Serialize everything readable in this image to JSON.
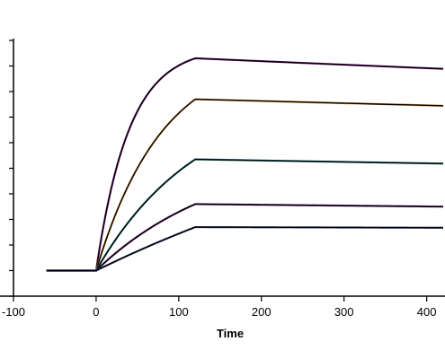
{
  "chart_data": {
    "type": "line",
    "title": "",
    "xlabel": "Time",
    "ylabel": "",
    "xlim": [
      -100,
      420
    ],
    "ylim": [
      0,
      10
    ],
    "x_ticks": [
      -100,
      0,
      100,
      200,
      300,
      400
    ],
    "x_tick_labels": [
      "-100",
      "0",
      "100",
      "200",
      "300",
      "400"
    ],
    "y_ticks": [
      0,
      1,
      2,
      3,
      4,
      5,
      6,
      7,
      8,
      9,
      10
    ],
    "grid": false,
    "legend": "none",
    "curve_model": {
      "baseline": 1.0,
      "injection_start": 0,
      "dissociation_start": 120,
      "end": 420
    },
    "series": [
      {
        "plateau": 9.3,
        "association_rate": 0.025,
        "dissociation_rate": 0.00017,
        "color": "#7a1f7a",
        "fit_color": "#000000"
      },
      {
        "plateau": 7.7,
        "association_rate": 0.0125,
        "dissociation_rate": 0.00013,
        "color": "#c68a3a",
        "fit_color": "#000000"
      },
      {
        "plateau": 5.35,
        "association_rate": 0.008,
        "dissociation_rate": 0.00013,
        "color": "#2a7a7a",
        "fit_color": "#000000"
      },
      {
        "plateau": 3.6,
        "association_rate": 0.0065,
        "dissociation_rate": 0.00013,
        "color": "#6a2a7a",
        "fit_color": "#000000"
      },
      {
        "plateau": 2.7,
        "association_rate": 0.002,
        "dissociation_rate": 5e-05,
        "color": "#404a7a",
        "fit_color": "#000000"
      }
    ]
  }
}
